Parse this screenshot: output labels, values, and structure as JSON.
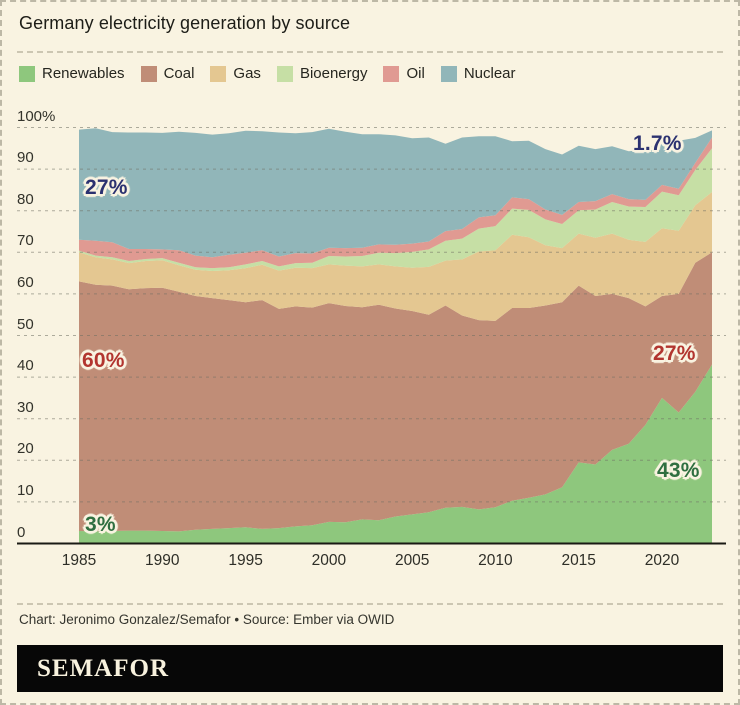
{
  "header": {
    "title": "Germany electricity generation by source"
  },
  "legend": {
    "items": [
      {
        "label": "Renewables",
        "color": "#8ec77d"
      },
      {
        "label": "Coal",
        "color": "#c08d77"
      },
      {
        "label": "Gas",
        "color": "#e4c791"
      },
      {
        "label": "Bioenergy",
        "color": "#c6dfa5"
      },
      {
        "label": "Oil",
        "color": "#e09a92"
      },
      {
        "label": "Nuclear",
        "color": "#91b6b9"
      }
    ]
  },
  "chart_data": {
    "type": "area",
    "stacked": true,
    "title": "Germany electricity generation by source",
    "unit": "%",
    "ylim": [
      0,
      100
    ],
    "grid": true,
    "x": [
      1985,
      1986,
      1987,
      1988,
      1989,
      1990,
      1991,
      1992,
      1993,
      1994,
      1995,
      1996,
      1997,
      1998,
      1999,
      2000,
      2001,
      2002,
      2003,
      2004,
      2005,
      2006,
      2007,
      2008,
      2009,
      2010,
      2011,
      2012,
      2013,
      2014,
      2015,
      2016,
      2017,
      2018,
      2019,
      2020,
      2021,
      2022,
      2023
    ],
    "series": [
      {
        "name": "Renewables",
        "color": "#8ec77d",
        "values": [
          3.0,
          2.9,
          3.0,
          3.1,
          3.1,
          3.0,
          2.9,
          3.3,
          3.5,
          3.7,
          3.9,
          3.5,
          3.7,
          4.1,
          4.4,
          5.2,
          5.1,
          5.8,
          5.6,
          6.5,
          7.0,
          7.5,
          8.6,
          8.8,
          8.2,
          8.7,
          10.3,
          11.0,
          11.8,
          13.5,
          19.5,
          19.0,
          22.5,
          24.0,
          28.5,
          35.0,
          31.5,
          36.5,
          43.0
        ]
      },
      {
        "name": "Coal",
        "color": "#c08d77",
        "values": [
          60.0,
          59.3,
          59.0,
          58.0,
          58.3,
          58.5,
          57.6,
          56.2,
          55.5,
          54.8,
          54.1,
          55.0,
          52.7,
          52.9,
          52.3,
          52.6,
          52.0,
          51.0,
          51.8,
          50.0,
          48.9,
          47.5,
          48.6,
          46.0,
          45.5,
          44.8,
          46.3,
          45.6,
          45.4,
          44.5,
          42.5,
          40.5,
          37.5,
          35.0,
          28.5,
          24.5,
          28.5,
          31.0,
          27.0
        ]
      },
      {
        "name": "Gas",
        "color": "#e4c791",
        "values": [
          7.0,
          6.6,
          6.3,
          6.3,
          6.5,
          6.6,
          6.4,
          6.3,
          6.5,
          7.2,
          8.2,
          8.5,
          9.2,
          9.3,
          9.5,
          9.3,
          9.7,
          9.8,
          9.7,
          10.1,
          10.4,
          11.5,
          10.8,
          13.5,
          16.5,
          17.0,
          17.6,
          17.0,
          14.5,
          13.0,
          12.5,
          14.0,
          14.5,
          14.0,
          15.5,
          16.3,
          15.2,
          13.8,
          14.5
        ]
      },
      {
        "name": "Bioenergy",
        "color": "#c6dfa5",
        "values": [
          0.4,
          0.4,
          0.5,
          0.5,
          0.5,
          0.5,
          0.6,
          0.6,
          0.7,
          0.7,
          0.9,
          0.9,
          1.0,
          1.1,
          1.3,
          2.0,
          2.2,
          2.5,
          2.8,
          3.2,
          3.8,
          4.2,
          4.8,
          5.0,
          5.5,
          5.8,
          6.3,
          6.6,
          6.2,
          5.8,
          5.6,
          6.8,
          7.6,
          8.0,
          8.4,
          8.8,
          8.5,
          8.5,
          10.5
        ]
      },
      {
        "name": "Oil",
        "color": "#e09a92",
        "values": [
          2.6,
          3.6,
          3.6,
          2.9,
          2.4,
          2.1,
          3.0,
          2.8,
          2.6,
          3.0,
          2.8,
          2.6,
          2.4,
          2.4,
          2.2,
          2.0,
          2.0,
          2.0,
          2.0,
          2.0,
          2.0,
          1.9,
          2.3,
          2.3,
          2.7,
          2.6,
          2.7,
          2.6,
          2.4,
          2.2,
          2.0,
          2.0,
          1.9,
          1.8,
          1.7,
          1.6,
          1.6,
          1.7,
          2.6
        ]
      },
      {
        "name": "Nuclear",
        "color": "#91b6b9",
        "values": [
          26.5,
          27.0,
          26.5,
          28.0,
          28.0,
          28.0,
          28.5,
          29.5,
          29.5,
          29.2,
          29.3,
          28.6,
          29.8,
          28.8,
          29.2,
          28.6,
          28.0,
          27.3,
          26.5,
          26.3,
          25.3,
          25.0,
          21.0,
          22.0,
          19.5,
          19.0,
          13.5,
          14.0,
          14.5,
          14.5,
          13.5,
          12.5,
          11.5,
          11.5,
          12.0,
          11.0,
          11.5,
          6.0,
          1.7
        ]
      }
    ],
    "yticks": [
      {
        "value": 100,
        "label": "100%"
      },
      {
        "value": 90,
        "label": "90"
      },
      {
        "value": 80,
        "label": "80"
      },
      {
        "value": 70,
        "label": "70"
      },
      {
        "value": 60,
        "label": "60"
      },
      {
        "value": 50,
        "label": "50"
      },
      {
        "value": 40,
        "label": "40"
      },
      {
        "value": 30,
        "label": "30"
      },
      {
        "value": 20,
        "label": "20"
      },
      {
        "value": 10,
        "label": "10"
      },
      {
        "value": 0,
        "label": "0"
      }
    ],
    "xticks": [
      1985,
      1990,
      1995,
      2000,
      2005,
      2010,
      2015,
      2020
    ],
    "grid_color": "#6f6f63",
    "axis_color": "#1a1a14",
    "annotations": [
      {
        "text": "27%",
        "series": "Nuclear",
        "year": 1985,
        "color": "#2b3170"
      },
      {
        "text": "1.7%",
        "series": "Nuclear",
        "year": 2023,
        "color": "#2b3170"
      },
      {
        "text": "60%",
        "series": "Coal",
        "year": 1985,
        "color": "#b2352f"
      },
      {
        "text": "27%",
        "series": "Coal",
        "year": 2023,
        "color": "#b2352f"
      },
      {
        "text": "3%",
        "series": "Renewables",
        "year": 1985,
        "color": "#2f6f40"
      },
      {
        "text": "43%",
        "series": "Renewables",
        "year": 2023,
        "color": "#2f6f40"
      }
    ]
  },
  "footer": {
    "credit": "Chart: Jeronimo Gonzalez/Semafor • Source: Ember via OWID",
    "brand": "SEMAFOR"
  }
}
